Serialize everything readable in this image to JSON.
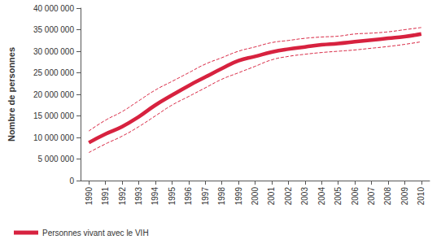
{
  "chart_data": {
    "type": "line",
    "y_label": "Nombre de personnes",
    "categories": [
      "1990",
      "1991",
      "1992",
      "1993",
      "1994",
      "1995",
      "1996",
      "1997",
      "1998",
      "1999",
      "2000",
      "2001",
      "2002",
      "2003",
      "2004",
      "2005",
      "2006",
      "2007",
      "2008",
      "2009",
      "2010"
    ],
    "series": [
      {
        "name": "Personnes vivant avec le VIH",
        "color": "#d7223f",
        "values": [
          8800000,
          10800000,
          12500000,
          14800000,
          17500000,
          19800000,
          22000000,
          24000000,
          26000000,
          27800000,
          28800000,
          29800000,
          30500000,
          31000000,
          31500000,
          31800000,
          32200000,
          32600000,
          33000000,
          33400000,
          34000000
        ],
        "upper": [
          11500000,
          14000000,
          16000000,
          18500000,
          21000000,
          23000000,
          25000000,
          27000000,
          28500000,
          30000000,
          31000000,
          32000000,
          32500000,
          33000000,
          33300000,
          33500000,
          34000000,
          34200000,
          34500000,
          35000000,
          35500000
        ],
        "lower": [
          6500000,
          8500000,
          10300000,
          12500000,
          15000000,
          17500000,
          19500000,
          21500000,
          23500000,
          25000000,
          26500000,
          28000000,
          28800000,
          29300000,
          29700000,
          30000000,
          30300000,
          30700000,
          31100000,
          31600000,
          32200000
        ]
      }
    ],
    "ylim": [
      0,
      40000000
    ],
    "yticks": [
      {
        "value": 0,
        "label": "0"
      },
      {
        "value": 5000000,
        "label": "5 000 000"
      },
      {
        "value": 10000000,
        "label": "10 000 000"
      },
      {
        "value": 15000000,
        "label": "15 000 000"
      },
      {
        "value": 20000000,
        "label": "20 000 000"
      },
      {
        "value": 25000000,
        "label": "25 000 000"
      },
      {
        "value": 30000000,
        "label": "30 000 000"
      },
      {
        "value": 35000000,
        "label": "35 000 000"
      },
      {
        "value": 40000000,
        "label": "40 000 000"
      }
    ],
    "grid": false,
    "legend": "bottom-left"
  }
}
